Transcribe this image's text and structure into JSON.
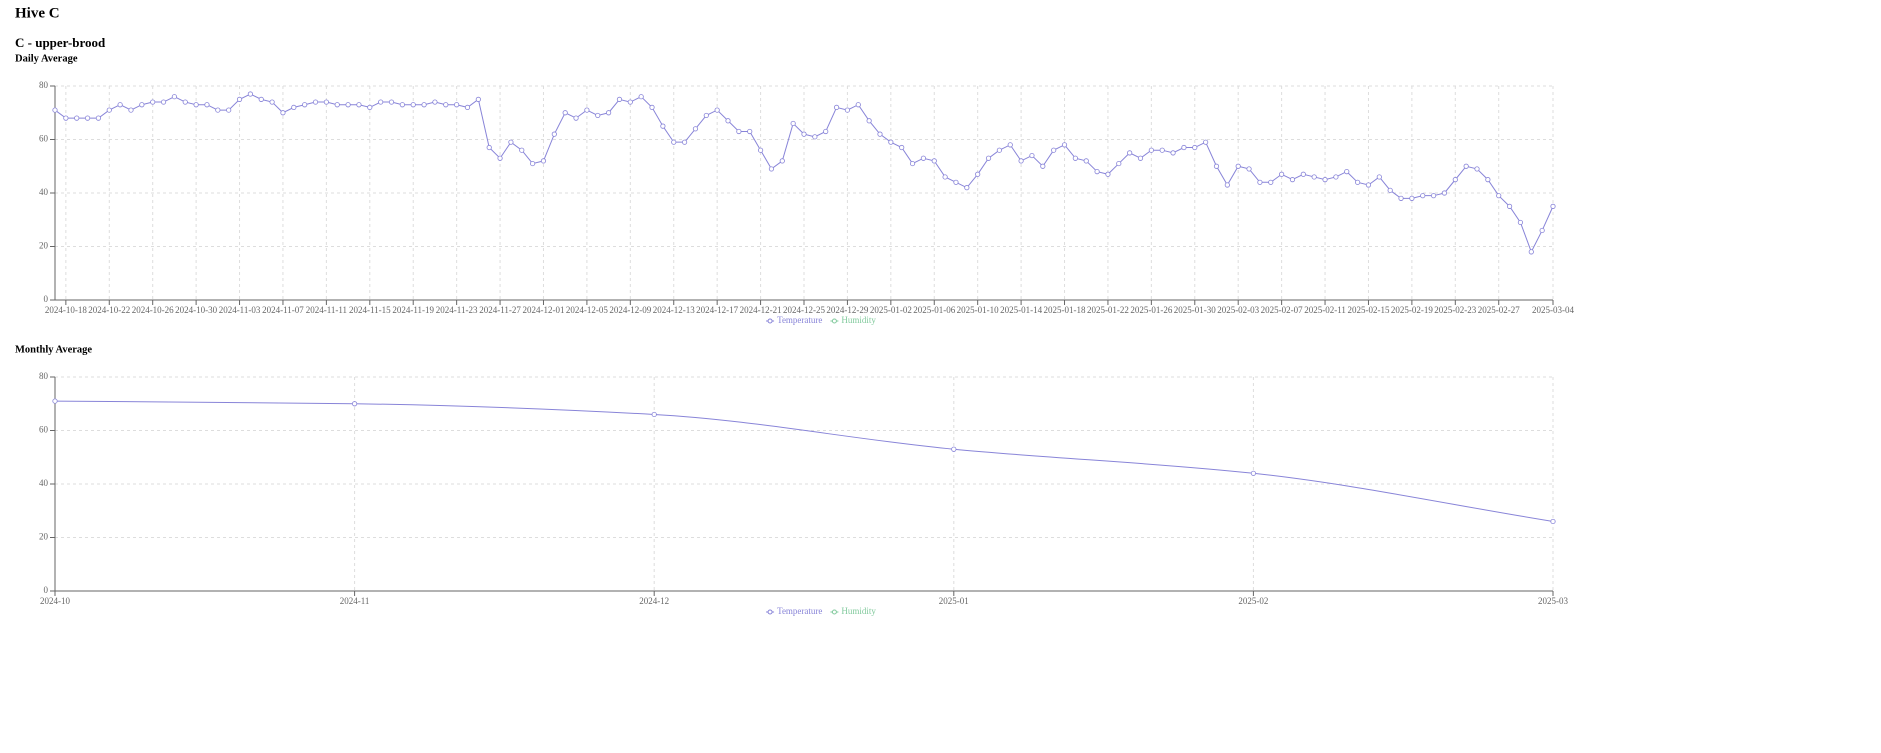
{
  "header": {
    "title": "Hive C",
    "subtitle": "C - upper-brood"
  },
  "chart_data": [
    {
      "type": "line",
      "title": "Daily Average",
      "categories": [
        null,
        "2024-10-18",
        null,
        null,
        null,
        "2024-10-22",
        null,
        null,
        null,
        "2024-10-26",
        null,
        null,
        null,
        "2024-10-30",
        null,
        null,
        null,
        "2024-11-03",
        null,
        null,
        null,
        "2024-11-07",
        null,
        null,
        null,
        "2024-11-11",
        null,
        null,
        null,
        "2024-11-15",
        null,
        null,
        null,
        "2024-11-19",
        null,
        null,
        null,
        "2024-11-23",
        null,
        null,
        null,
        "2024-11-27",
        null,
        null,
        null,
        "2024-12-01",
        null,
        null,
        null,
        "2024-12-05",
        null,
        null,
        null,
        "2024-12-09",
        null,
        null,
        null,
        "2024-12-13",
        null,
        null,
        null,
        "2024-12-17",
        null,
        null,
        null,
        "2024-12-21",
        null,
        null,
        null,
        "2024-12-25",
        null,
        null,
        null,
        "2024-12-29",
        null,
        null,
        null,
        "2025-01-02",
        null,
        null,
        null,
        "2025-01-06",
        null,
        null,
        null,
        "2025-01-10",
        null,
        null,
        null,
        "2025-01-14",
        null,
        null,
        null,
        "2025-01-18",
        null,
        null,
        null,
        "2025-01-22",
        null,
        null,
        null,
        "2025-01-26",
        null,
        null,
        null,
        "2025-01-30",
        null,
        null,
        null,
        "2025-02-03",
        null,
        null,
        null,
        "2025-02-07",
        null,
        null,
        null,
        "2025-02-11",
        null,
        null,
        null,
        "2025-02-15",
        null,
        null,
        null,
        "2025-02-19",
        null,
        null,
        null,
        "2025-02-23",
        null,
        null,
        null,
        "2025-02-27",
        null,
        null,
        null,
        null,
        "2025-03-04"
      ],
      "series": [
        {
          "name": "Temperature",
          "color": "#8884d8",
          "values": [
            71,
            68,
            68,
            68,
            68,
            71,
            73,
            71,
            73,
            74,
            74,
            76,
            74,
            73,
            73,
            71,
            71,
            75,
            77,
            75,
            74,
            70,
            72,
            73,
            74,
            74,
            73,
            73,
            73,
            72,
            74,
            74,
            73,
            73,
            73,
            74,
            73,
            73,
            72,
            75,
            57,
            53,
            59,
            56,
            51,
            52,
            62,
            70,
            68,
            71,
            69,
            70,
            75,
            74,
            76,
            72,
            65,
            59,
            59,
            64,
            69,
            71,
            67,
            63,
            63,
            56,
            49,
            52,
            66,
            62,
            61,
            63,
            72,
            71,
            73,
            67,
            62,
            59,
            57,
            51,
            53,
            52,
            46,
            44,
            42,
            47,
            53,
            56,
            58,
            52,
            54,
            50,
            56,
            58,
            53,
            52,
            48,
            47,
            51,
            55,
            53,
            56,
            56,
            55,
            57,
            57,
            59,
            50,
            43,
            50,
            49,
            44,
            44,
            47,
            45,
            47,
            46,
            45,
            46,
            48,
            44,
            43,
            46,
            41,
            38,
            38,
            39,
            39,
            40,
            45,
            50,
            49,
            45,
            39,
            35,
            29,
            18,
            26,
            35
          ]
        },
        {
          "name": "Humidity",
          "color": "#82ca9d"
        }
      ],
      "ylim": [
        0,
        80
      ],
      "yticks": [
        0,
        20,
        40,
        60,
        80
      ],
      "grid": true,
      "legend": "bottom",
      "smooth": false
    },
    {
      "type": "line",
      "title": "Monthly Average",
      "categories": [
        "2024-10",
        "2024-11",
        "2024-12",
        "2025-01",
        "2025-02",
        "2025-03"
      ],
      "series": [
        {
          "name": "Temperature",
          "color": "#8884d8",
          "values": [
            71,
            70,
            66,
            53,
            44,
            26
          ]
        },
        {
          "name": "Humidity",
          "color": "#82ca9d"
        }
      ],
      "ylim": [
        0,
        80
      ],
      "yticks": [
        0,
        20,
        40,
        60,
        80
      ],
      "grid": true,
      "legend": "bottom",
      "smooth": true
    }
  ]
}
